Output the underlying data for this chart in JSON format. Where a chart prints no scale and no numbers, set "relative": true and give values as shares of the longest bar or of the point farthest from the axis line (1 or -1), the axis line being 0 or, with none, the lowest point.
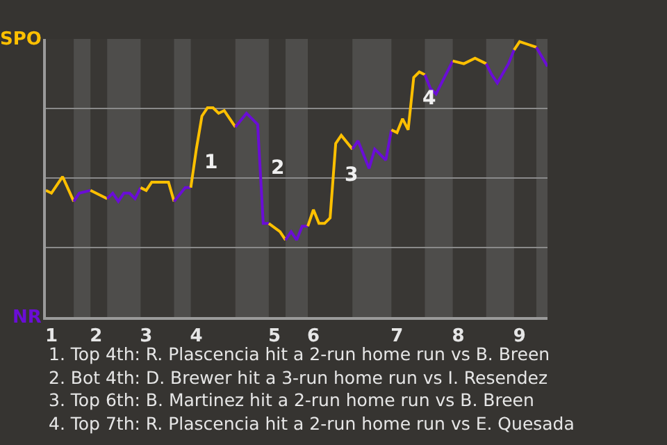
{
  "chart_data": {
    "type": "line",
    "relative": true,
    "categories": [
      null,
      "1",
      null,
      null,
      null,
      null,
      null,
      null,
      null,
      "2",
      null,
      null,
      null,
      null,
      null,
      null,
      null,
      null,
      "3",
      null,
      null,
      null,
      null,
      null,
      null,
      null,
      null,
      "4",
      null,
      null,
      null,
      null,
      null,
      null,
      null,
      null,
      null,
      null,
      null,
      null,
      null,
      "5",
      null,
      null,
      null,
      null,
      null,
      null,
      "6",
      null,
      null,
      null,
      null,
      null,
      null,
      null,
      null,
      null,
      null,
      null,
      null,
      null,
      null,
      "7",
      null,
      null,
      null,
      null,
      null,
      null,
      null,
      null,
      null,
      null,
      "8",
      null,
      null,
      null,
      null,
      null,
      null,
      null,
      null,
      null,
      null,
      "9",
      null,
      null,
      null,
      null,
      null
    ],
    "grid": "y",
    "marker": "none",
    "line_style": "solid",
    "series": [
      {
        "color": "#ffc000",
        "values": [
          0.46,
          0.45,
          null,
          0.51,
          null,
          0.42,
          null,
          null,
          null,
          null,
          null,
          null,
          null,
          null,
          null,
          null,
          null,
          null,
          null,
          null,
          null,
          null,
          null,
          null,
          null,
          null,
          null,
          null,
          null,
          null,
          null,
          null,
          null,
          null,
          null,
          null,
          null,
          null,
          null,
          null,
          null,
          null,
          null,
          null,
          null,
          null,
          null,
          null,
          null,
          null,
          null,
          null,
          null,
          null,
          null,
          null,
          null,
          null,
          null,
          null,
          null,
          null,
          null,
          null,
          null,
          null,
          null,
          null,
          null,
          null,
          null,
          null,
          null,
          null,
          null,
          null,
          null,
          null,
          null,
          null,
          null,
          null,
          null,
          null,
          null,
          null,
          null,
          null,
          null,
          null,
          null
        ]
      },
      {
        "color": "#6a0dd6",
        "values": [
          null,
          null,
          null,
          null,
          null,
          0.42,
          0.45,
          null,
          0.46,
          null,
          null,
          null,
          null,
          null,
          null,
          null,
          null,
          null,
          null,
          null,
          null,
          null,
          null,
          null,
          null,
          null,
          null,
          null,
          null,
          null,
          null,
          null,
          null,
          null,
          null,
          null,
          null,
          null,
          null,
          null,
          null,
          null,
          null,
          null,
          null,
          null,
          null,
          null,
          null,
          null,
          null,
          null,
          null,
          null,
          null,
          null,
          null,
          null,
          null,
          null,
          null,
          null,
          null,
          null,
          null,
          null,
          null,
          null,
          null,
          null,
          null,
          null,
          null,
          null,
          null,
          null,
          null,
          null,
          null,
          null,
          null,
          null,
          null,
          null,
          null,
          null,
          null,
          null,
          null,
          null,
          null
        ]
      },
      {
        "color": "#ffc000",
        "values": [
          null,
          null,
          null,
          null,
          null,
          null,
          null,
          null,
          0.46,
          null,
          null,
          0.43,
          null,
          null,
          null,
          null,
          null,
          null,
          null,
          null,
          null,
          null,
          null,
          null,
          null,
          null,
          null,
          null,
          null,
          null,
          null,
          null,
          null,
          null,
          null,
          null,
          null,
          null,
          null,
          null,
          null,
          null,
          null,
          null,
          null,
          null,
          null,
          null,
          null,
          null,
          null,
          null,
          null,
          null,
          null,
          null,
          null,
          null,
          null,
          null,
          null,
          null,
          null,
          null,
          null,
          null,
          null,
          null,
          null,
          null,
          null,
          null,
          null,
          null,
          null,
          null,
          null,
          null,
          null,
          null,
          null,
          null,
          null,
          null,
          null,
          null,
          null,
          null,
          null,
          null,
          null
        ]
      },
      {
        "color": "#6a0dd6",
        "values": [
          null,
          null,
          null,
          null,
          null,
          null,
          null,
          null,
          null,
          null,
          null,
          0.43,
          0.45,
          0.42,
          0.45,
          0.45,
          0.43,
          0.47,
          null,
          null,
          null,
          null,
          null,
          null,
          null,
          null,
          null,
          null,
          null,
          null,
          null,
          null,
          null,
          null,
          null,
          null,
          null,
          null,
          null,
          null,
          null,
          null,
          null,
          null,
          null,
          null,
          null,
          null,
          null,
          null,
          null,
          null,
          null,
          null,
          null,
          null,
          null,
          null,
          null,
          null,
          null,
          null,
          null,
          null,
          null,
          null,
          null,
          null,
          null,
          null,
          null,
          null,
          null,
          null,
          null,
          null,
          null,
          null,
          null,
          null,
          null,
          null,
          null,
          null,
          null,
          null,
          null,
          null,
          null,
          null,
          null
        ]
      },
      {
        "color": "#ffc000",
        "values": [
          null,
          null,
          null,
          null,
          null,
          null,
          null,
          null,
          null,
          null,
          null,
          null,
          null,
          null,
          null,
          null,
          null,
          0.47,
          0.46,
          0.49,
          null,
          null,
          0.49,
          0.42,
          null,
          null,
          null,
          null,
          null,
          null,
          null,
          null,
          null,
          null,
          null,
          null,
          null,
          null,
          null,
          null,
          null,
          null,
          null,
          null,
          null,
          null,
          null,
          null,
          null,
          null,
          null,
          null,
          null,
          null,
          null,
          null,
          null,
          null,
          null,
          null,
          null,
          null,
          null,
          null,
          null,
          null,
          null,
          null,
          null,
          null,
          null,
          null,
          null,
          null,
          null,
          null,
          null,
          null,
          null,
          null,
          null,
          null,
          null,
          null,
          null,
          null,
          null,
          null,
          null,
          null,
          null
        ]
      },
      {
        "color": "#6a0dd6",
        "values": [
          null,
          null,
          null,
          null,
          null,
          null,
          null,
          null,
          null,
          null,
          null,
          null,
          null,
          null,
          null,
          null,
          null,
          null,
          null,
          null,
          null,
          null,
          null,
          0.42,
          null,
          0.47,
          0.47,
          null,
          null,
          null,
          null,
          null,
          null,
          null,
          null,
          null,
          null,
          null,
          null,
          null,
          null,
          null,
          null,
          null,
          null,
          null,
          null,
          null,
          null,
          null,
          null,
          null,
          null,
          null,
          null,
          null,
          null,
          null,
          null,
          null,
          null,
          null,
          null,
          null,
          null,
          null,
          null,
          null,
          null,
          null,
          null,
          null,
          null,
          null,
          null,
          null,
          null,
          null,
          null,
          null,
          null,
          null,
          null,
          null,
          null,
          null,
          null,
          null,
          null,
          null,
          null
        ]
      },
      {
        "color": "#ffc000",
        "values": [
          null,
          null,
          null,
          null,
          null,
          null,
          null,
          null,
          null,
          null,
          null,
          null,
          null,
          null,
          null,
          null,
          null,
          null,
          null,
          null,
          null,
          null,
          null,
          null,
          null,
          null,
          0.47,
          0.61,
          0.73,
          0.76,
          0.76,
          0.74,
          0.75,
          0.72,
          0.69,
          null,
          null,
          null,
          null,
          null,
          null,
          null,
          null,
          null,
          null,
          null,
          null,
          null,
          null,
          null,
          null,
          null,
          null,
          null,
          null,
          null,
          null,
          null,
          null,
          null,
          null,
          null,
          null,
          null,
          null,
          null,
          null,
          null,
          null,
          null,
          null,
          null,
          null,
          null,
          null,
          null,
          null,
          null,
          null,
          null,
          null,
          null,
          null,
          null,
          null,
          null,
          null,
          null,
          null,
          null,
          null
        ]
      },
      {
        "color": "#6a0dd6",
        "values": [
          null,
          null,
          null,
          null,
          null,
          null,
          null,
          null,
          null,
          null,
          null,
          null,
          null,
          null,
          null,
          null,
          null,
          null,
          null,
          null,
          null,
          null,
          null,
          null,
          null,
          null,
          null,
          null,
          null,
          null,
          null,
          null,
          null,
          null,
          0.69,
          null,
          0.74,
          null,
          0.7,
          0.34,
          0.34,
          null,
          null,
          null,
          null,
          null,
          null,
          null,
          null,
          null,
          null,
          null,
          null,
          null,
          null,
          null,
          null,
          null,
          null,
          null,
          null,
          null,
          null,
          null,
          null,
          null,
          null,
          null,
          null,
          null,
          null,
          null,
          null,
          null,
          null,
          null,
          null,
          null,
          null,
          null,
          null,
          null,
          null,
          null,
          null,
          null,
          null,
          null,
          null,
          null,
          null
        ]
      },
      {
        "color": "#ffc000",
        "values": [
          null,
          null,
          null,
          null,
          null,
          null,
          null,
          null,
          null,
          null,
          null,
          null,
          null,
          null,
          null,
          null,
          null,
          null,
          null,
          null,
          null,
          null,
          null,
          null,
          null,
          null,
          null,
          null,
          null,
          null,
          null,
          null,
          null,
          null,
          null,
          null,
          null,
          null,
          null,
          null,
          0.34,
          null,
          0.31,
          0.28,
          null,
          null,
          null,
          null,
          null,
          null,
          null,
          null,
          null,
          null,
          null,
          null,
          null,
          null,
          null,
          null,
          null,
          null,
          null,
          null,
          null,
          null,
          null,
          null,
          null,
          null,
          null,
          null,
          null,
          null,
          null,
          null,
          null,
          null,
          null,
          null,
          null,
          null,
          null,
          null,
          null,
          null,
          null,
          null,
          null,
          null,
          null
        ]
      },
      {
        "color": "#6a0dd6",
        "values": [
          null,
          null,
          null,
          null,
          null,
          null,
          null,
          null,
          null,
          null,
          null,
          null,
          null,
          null,
          null,
          null,
          null,
          null,
          null,
          null,
          null,
          null,
          null,
          null,
          null,
          null,
          null,
          null,
          null,
          null,
          null,
          null,
          null,
          null,
          null,
          null,
          null,
          null,
          null,
          null,
          null,
          null,
          null,
          0.28,
          0.31,
          0.28,
          0.33,
          0.33,
          null,
          null,
          null,
          null,
          null,
          null,
          null,
          null,
          null,
          null,
          null,
          null,
          null,
          null,
          null,
          null,
          null,
          null,
          null,
          null,
          null,
          null,
          null,
          null,
          null,
          null,
          null,
          null,
          null,
          null,
          null,
          null,
          null,
          null,
          null,
          null,
          null,
          null,
          null,
          null,
          null,
          null,
          null
        ]
      },
      {
        "color": "#ffc000",
        "values": [
          null,
          null,
          null,
          null,
          null,
          null,
          null,
          null,
          null,
          null,
          null,
          null,
          null,
          null,
          null,
          null,
          null,
          null,
          null,
          null,
          null,
          null,
          null,
          null,
          null,
          null,
          null,
          null,
          null,
          null,
          null,
          null,
          null,
          null,
          null,
          null,
          null,
          null,
          null,
          null,
          null,
          null,
          null,
          null,
          null,
          null,
          null,
          0.33,
          0.39,
          0.34,
          0.34,
          0.36,
          0.63,
          0.66,
          null,
          0.61,
          null,
          null,
          null,
          null,
          null,
          null,
          null,
          null,
          null,
          null,
          null,
          null,
          null,
          null,
          null,
          null,
          null,
          null,
          null,
          null,
          null,
          null,
          null,
          null,
          null,
          null,
          null,
          null,
          null,
          null,
          null,
          null,
          null,
          null,
          null
        ]
      },
      {
        "color": "#6a0dd6",
        "values": [
          null,
          null,
          null,
          null,
          null,
          null,
          null,
          null,
          null,
          null,
          null,
          null,
          null,
          null,
          null,
          null,
          null,
          null,
          null,
          null,
          null,
          null,
          null,
          null,
          null,
          null,
          null,
          null,
          null,
          null,
          null,
          null,
          null,
          null,
          null,
          null,
          null,
          null,
          null,
          null,
          null,
          null,
          null,
          null,
          null,
          null,
          null,
          null,
          null,
          null,
          null,
          null,
          null,
          null,
          null,
          0.61,
          0.64,
          null,
          0.54,
          0.61,
          null,
          0.57,
          0.68,
          null,
          null,
          null,
          null,
          null,
          null,
          null,
          null,
          null,
          null,
          null,
          null,
          null,
          null,
          null,
          null,
          null,
          null,
          null,
          null,
          null,
          null,
          null,
          null,
          null,
          null,
          null,
          null
        ]
      },
      {
        "color": "#ffc000",
        "values": [
          null,
          null,
          null,
          null,
          null,
          null,
          null,
          null,
          null,
          null,
          null,
          null,
          null,
          null,
          null,
          null,
          null,
          null,
          null,
          null,
          null,
          null,
          null,
          null,
          null,
          null,
          null,
          null,
          null,
          null,
          null,
          null,
          null,
          null,
          null,
          null,
          null,
          null,
          null,
          null,
          null,
          null,
          null,
          null,
          null,
          null,
          null,
          null,
          null,
          null,
          null,
          null,
          null,
          null,
          null,
          null,
          null,
          null,
          null,
          null,
          null,
          null,
          0.68,
          0.67,
          0.72,
          0.68,
          0.87,
          0.89,
          0.88,
          null,
          null,
          null,
          null,
          null,
          null,
          null,
          null,
          null,
          null,
          null,
          null,
          null,
          null,
          null,
          null,
          null,
          null,
          null,
          null,
          null,
          null
        ]
      },
      {
        "color": "#6a0dd6",
        "values": [
          null,
          null,
          null,
          null,
          null,
          null,
          null,
          null,
          null,
          null,
          null,
          null,
          null,
          null,
          null,
          null,
          null,
          null,
          null,
          null,
          null,
          null,
          null,
          null,
          null,
          null,
          null,
          null,
          null,
          null,
          null,
          null,
          null,
          null,
          null,
          null,
          null,
          null,
          null,
          null,
          null,
          null,
          null,
          null,
          null,
          null,
          null,
          null,
          null,
          null,
          null,
          null,
          null,
          null,
          null,
          null,
          null,
          null,
          null,
          null,
          null,
          null,
          null,
          null,
          null,
          null,
          null,
          null,
          0.88,
          0.83,
          0.81,
          null,
          null,
          0.93,
          null,
          null,
          null,
          null,
          null,
          null,
          null,
          null,
          null,
          null,
          null,
          null,
          null,
          null,
          null,
          null,
          null
        ]
      },
      {
        "color": "#ffc000",
        "values": [
          null,
          null,
          null,
          null,
          null,
          null,
          null,
          null,
          null,
          null,
          null,
          null,
          null,
          null,
          null,
          null,
          null,
          null,
          null,
          null,
          null,
          null,
          null,
          null,
          null,
          null,
          null,
          null,
          null,
          null,
          null,
          null,
          null,
          null,
          null,
          null,
          null,
          null,
          null,
          null,
          null,
          null,
          null,
          null,
          null,
          null,
          null,
          null,
          null,
          null,
          null,
          null,
          null,
          null,
          null,
          null,
          null,
          null,
          null,
          null,
          null,
          null,
          null,
          null,
          null,
          null,
          null,
          null,
          null,
          null,
          null,
          null,
          null,
          0.93,
          null,
          0.92,
          null,
          0.94,
          null,
          0.92,
          null,
          null,
          null,
          null,
          null,
          null,
          null,
          null,
          null,
          null,
          null
        ]
      },
      {
        "color": "#6a0dd6",
        "values": [
          null,
          null,
          null,
          null,
          null,
          null,
          null,
          null,
          null,
          null,
          null,
          null,
          null,
          null,
          null,
          null,
          null,
          null,
          null,
          null,
          null,
          null,
          null,
          null,
          null,
          null,
          null,
          null,
          null,
          null,
          null,
          null,
          null,
          null,
          null,
          null,
          null,
          null,
          null,
          null,
          null,
          null,
          null,
          null,
          null,
          null,
          null,
          null,
          null,
          null,
          null,
          null,
          null,
          null,
          null,
          null,
          null,
          null,
          null,
          null,
          null,
          null,
          null,
          null,
          null,
          null,
          null,
          null,
          null,
          null,
          null,
          null,
          null,
          null,
          null,
          null,
          null,
          null,
          null,
          0.92,
          0.88,
          0.85,
          null,
          0.92,
          0.97,
          null,
          null,
          null,
          null,
          null,
          null
        ]
      },
      {
        "color": "#ffc000",
        "values": [
          null,
          null,
          null,
          null,
          null,
          null,
          null,
          null,
          null,
          null,
          null,
          null,
          null,
          null,
          null,
          null,
          null,
          null,
          null,
          null,
          null,
          null,
          null,
          null,
          null,
          null,
          null,
          null,
          null,
          null,
          null,
          null,
          null,
          null,
          null,
          null,
          null,
          null,
          null,
          null,
          null,
          null,
          null,
          null,
          null,
          null,
          null,
          null,
          null,
          null,
          null,
          null,
          null,
          null,
          null,
          null,
          null,
          null,
          null,
          null,
          null,
          null,
          null,
          null,
          null,
          null,
          null,
          null,
          null,
          null,
          null,
          null,
          null,
          null,
          null,
          null,
          null,
          null,
          null,
          null,
          null,
          null,
          null,
          null,
          0.97,
          1,
          null,
          null,
          0.98,
          null,
          null
        ]
      },
      {
        "color": "#6a0dd6",
        "values": [
          null,
          null,
          null,
          null,
          null,
          null,
          null,
          null,
          null,
          null,
          null,
          null,
          null,
          null,
          null,
          null,
          null,
          null,
          null,
          null,
          null,
          null,
          null,
          null,
          null,
          null,
          null,
          null,
          null,
          null,
          null,
          null,
          null,
          null,
          null,
          null,
          null,
          null,
          null,
          null,
          null,
          null,
          null,
          null,
          null,
          null,
          null,
          null,
          null,
          null,
          null,
          null,
          null,
          null,
          null,
          null,
          null,
          null,
          null,
          null,
          null,
          null,
          null,
          null,
          null,
          null,
          null,
          null,
          null,
          null,
          null,
          null,
          null,
          null,
          null,
          null,
          null,
          null,
          null,
          null,
          null,
          null,
          null,
          null,
          null,
          null,
          null,
          null,
          0.98,
          null,
          0.91
        ]
      }
    ],
    "annotations": [
      "SPO",
      "NR",
      "1",
      "2",
      "3",
      "4",
      "1. Top 4th: R. Plascencia hit a 2-run home run vs B. Breen",
      "2. Bot 4th: D. Brewer hit a 3-run home run vs I. Resendez",
      "3. Top 6th: B. Martinez hit a 2-run home run vs B. Breen",
      "4. Top 7th: R. Plascencia hit a 2-run home run vs E. Quesada"
    ]
  }
}
